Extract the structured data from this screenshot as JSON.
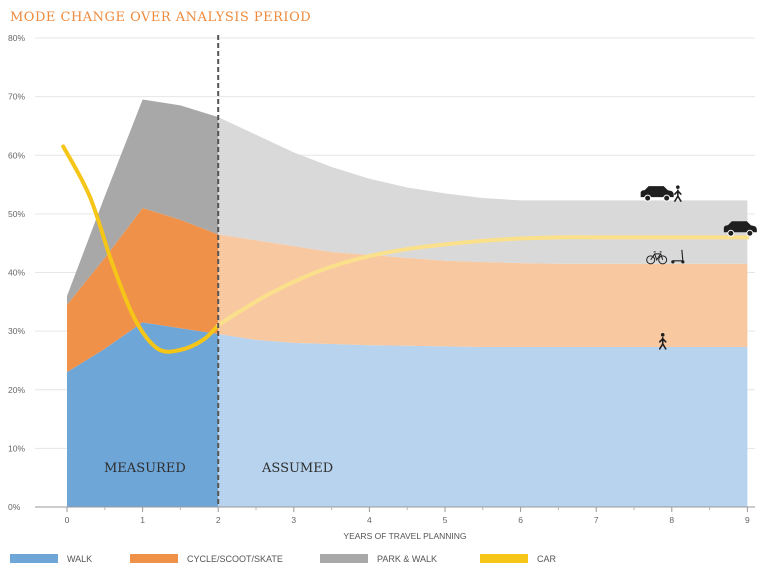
{
  "chart_data": {
    "type": "area",
    "title": "MODE CHANGE OVER ANALYSIS PERIOD",
    "xlabel": "YEARS OF TRAVEL PLANNING",
    "ylabel": "",
    "x_ticks": [
      "0",
      "1",
      "2",
      "3",
      "4",
      "5",
      "6",
      "7",
      "8",
      "9"
    ],
    "y_ticks": [
      "0%",
      "10%",
      "20%",
      "30%",
      "40%",
      "50%",
      "60%",
      "70%",
      "80%"
    ],
    "xlim": [
      -0.4,
      9.1
    ],
    "ylim": [
      0,
      80
    ],
    "grid": true,
    "legend_position": "bottom",
    "region_labels": {
      "measured": "MEASURED",
      "assumed": "ASSUMED",
      "split_x": 2
    },
    "x": [
      0,
      0.5,
      1,
      1.5,
      2,
      2.5,
      3,
      3.5,
      4,
      4.5,
      5,
      5.5,
      6,
      6.5,
      7,
      7.5,
      8,
      8.5,
      9
    ],
    "series": [
      {
        "name": "WALK",
        "color": "#6fa6d8",
        "color_light": "#b7d3ee",
        "top": [
          23,
          27,
          31.5,
          30.5,
          29.5,
          28.5,
          28,
          27.8,
          27.6,
          27.5,
          27.4,
          27.3,
          27.3,
          27.3,
          27.3,
          27.3,
          27.3,
          27.3,
          27.3
        ]
      },
      {
        "name": "CYCLE/SCOOT/SKATE",
        "color": "#f0914a",
        "color_light": "#f8c8a0",
        "top": [
          34.5,
          42.5,
          51,
          49,
          46.5,
          45.5,
          44.5,
          43.5,
          43,
          42.5,
          42,
          41.8,
          41.6,
          41.5,
          41.5,
          41.5,
          41.5,
          41.5,
          41.5
        ]
      },
      {
        "name": "PARK & WALK",
        "color": "#a8a8a8",
        "color_light": "#d9d9d9",
        "top": [
          36,
          53,
          69.5,
          68.5,
          66.5,
          63.5,
          60.5,
          58,
          56,
          54.5,
          53.5,
          52.7,
          52.3,
          52.3,
          52.3,
          52.3,
          52.3,
          52.3,
          52.3
        ]
      },
      {
        "name": "CAR",
        "color": "#f5c518",
        "color_light": "#fbe08c",
        "line": true,
        "x": [
          -0.05,
          0.3,
          0.6,
          0.9,
          1.2,
          1.5,
          1.8,
          2.0,
          2.3,
          2.7,
          3.1,
          3.5,
          4.0,
          4.5,
          5.0,
          5.5,
          6.0,
          6.5,
          7.0,
          8.0,
          9.0
        ],
        "y": [
          61.5,
          53,
          41.5,
          32,
          27,
          26.8,
          28.5,
          31,
          33.5,
          36.5,
          39,
          41,
          42.8,
          44,
          44.8,
          45.4,
          45.8,
          46,
          46,
          46,
          46
        ]
      }
    ],
    "icons": [
      {
        "name": "car-icon",
        "x": 7.8,
        "y": 53.2
      },
      {
        "name": "pedestrian-icon",
        "x": 8.08,
        "y": 53.2
      },
      {
        "name": "car-icon",
        "x": 8.9,
        "y": 47.2
      },
      {
        "name": "bicycle-icon",
        "x": 7.8,
        "y": 42.5
      },
      {
        "name": "scooter-icon",
        "x": 8.08,
        "y": 42.5
      },
      {
        "name": "pedestrian-icon",
        "x": 7.88,
        "y": 28
      }
    ]
  }
}
